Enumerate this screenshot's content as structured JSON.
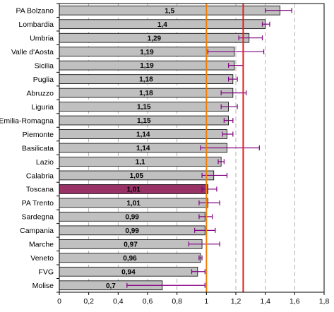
{
  "chart_data": {
    "type": "bar",
    "orientation": "horizontal",
    "title": "",
    "xlabel": "",
    "ylabel": "",
    "xlim": [
      0,
      1.8
    ],
    "xticks": [
      "0",
      "0,2",
      "0,4",
      "0,6",
      "0,8",
      "1",
      "1,2",
      "1,4",
      "1,6",
      "1,8"
    ],
    "grid": "vertical dashed",
    "legend": "none",
    "categories": [
      "PA Bolzano",
      "Lombardia",
      "Umbria",
      "Valle d'Aosta",
      "Sicilia",
      "Puglia",
      "Abruzzo",
      "Liguria",
      "Emilia-Romagna",
      "Piemonte",
      "Basilicata",
      "Lazio",
      "Calabria",
      "Toscana",
      "PA Trento",
      "Sardegna",
      "Campania",
      "Marche",
      "Veneto",
      "FVG",
      "Molise"
    ],
    "values": [
      1.5,
      1.4,
      1.29,
      1.19,
      1.19,
      1.18,
      1.18,
      1.15,
      1.15,
      1.14,
      1.14,
      1.1,
      1.05,
      1.01,
      1.01,
      0.99,
      0.99,
      0.97,
      0.96,
      0.94,
      0.7
    ],
    "value_labels": [
      "1,5",
      "1,4",
      "1,29",
      "1,19",
      "1,19",
      "1,18",
      "1,18",
      "1,15",
      "1,15",
      "1,14",
      "1,14",
      "1,1",
      "1,05",
      "1,01",
      "1,01",
      "0,99",
      "0,99",
      "0,97",
      "0,96",
      "0,94",
      "0,7"
    ],
    "error_low": [
      1.4,
      1.38,
      1.22,
      1.01,
      1.15,
      1.15,
      1.1,
      1.1,
      1.12,
      1.11,
      0.96,
      1.08,
      0.97,
      0.97,
      0.95,
      0.95,
      0.92,
      0.88,
      0.95,
      0.9,
      0.46
    ],
    "error_high": [
      1.58,
      1.43,
      1.38,
      1.39,
      1.25,
      1.21,
      1.27,
      1.21,
      1.18,
      1.18,
      1.36,
      1.12,
      1.14,
      1.07,
      1.09,
      1.04,
      1.06,
      1.09,
      0.97,
      0.99,
      0.99
    ],
    "highlight_category": "Toscana",
    "reference_lines": [
      {
        "value": 1.0,
        "color": "#f07f09"
      },
      {
        "value": 1.25,
        "color": "#e02020"
      }
    ],
    "colors": {
      "bar": "#c0c0c0",
      "bar_highlight": "#993366",
      "error": "#800080",
      "grid": "#a0a0a0"
    }
  }
}
